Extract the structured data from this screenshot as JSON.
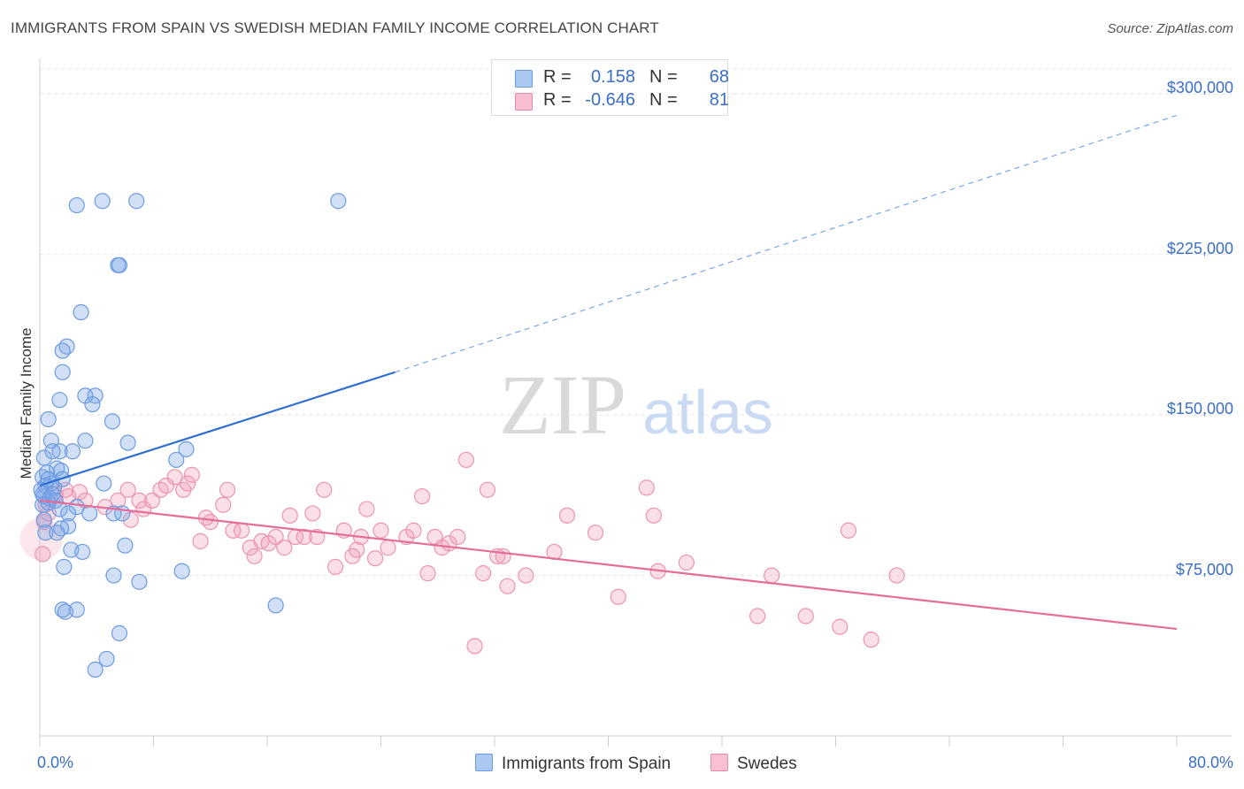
{
  "title": "IMMIGRANTS FROM SPAIN VS SWEDISH MEDIAN FAMILY INCOME CORRELATION CHART",
  "source": "Source: ZipAtlas.com",
  "watermark": {
    "zip": "ZIP",
    "atlas": "atlas"
  },
  "legend_stats": [
    {
      "r_label": "R =",
      "r_value": "0.158",
      "n_label": "N =",
      "n_value": "68",
      "color": "#aac8f0",
      "border": "#6d9be0"
    },
    {
      "r_label": "R =",
      "r_value": "-0.646",
      "n_label": "N =",
      "n_value": "81",
      "color": "#f8c0d0",
      "border": "#e88aa5"
    }
  ],
  "colors": {
    "blue_point": "#7aa6e8",
    "blue_line": "#2f6fd1",
    "pink_point": "#ef9ab5",
    "pink_line": "#e56e99",
    "tick_text": "#3a6fc4"
  },
  "chart_data": {
    "type": "scatter",
    "title": "IMMIGRANTS FROM SPAIN VS SWEDISH MEDIAN FAMILY INCOME CORRELATION CHART",
    "xlabel": "",
    "ylabel": "Median Family Income",
    "xlim": [
      0,
      80
    ],
    "ylim": [
      0,
      315000
    ],
    "x_tick_labels": [
      "0.0%",
      "80.0%"
    ],
    "y_ticks": [
      75000,
      150000,
      225000,
      300000
    ],
    "y_tick_labels": [
      "$75,000",
      "$150,000",
      "$225,000",
      "$300,000"
    ],
    "grid": true,
    "legend": "bottom",
    "series": [
      {
        "name": "Immigrants from Spain",
        "color": "#7aa6e8",
        "r": 0.158,
        "n": 68,
        "trend": {
          "x": [
            0,
            25,
            80
          ],
          "y": [
            117000,
            170000,
            290000
          ],
          "solid_until": 25
        },
        "points": [
          [
            2.6,
            248000
          ],
          [
            4.4,
            250000
          ],
          [
            6.8,
            250000
          ],
          [
            21.0,
            250000
          ],
          [
            5.5,
            220000
          ],
          [
            5.6,
            220000
          ],
          [
            2.9,
            198000
          ],
          [
            1.9,
            182000
          ],
          [
            1.6,
            180000
          ],
          [
            1.6,
            170000
          ],
          [
            1.4,
            157000
          ],
          [
            3.2,
            159000
          ],
          [
            3.9,
            159000
          ],
          [
            3.7,
            155000
          ],
          [
            5.1,
            147000
          ],
          [
            0.6,
            148000
          ],
          [
            3.2,
            138000
          ],
          [
            6.2,
            137000
          ],
          [
            0.8,
            138000
          ],
          [
            1.4,
            133000
          ],
          [
            2.3,
            133000
          ],
          [
            10.3,
            134000
          ],
          [
            9.6,
            129000
          ],
          [
            0.3,
            130000
          ],
          [
            0.9,
            133000
          ],
          [
            1.2,
            125000
          ],
          [
            1.5,
            124000
          ],
          [
            0.5,
            123000
          ],
          [
            0.2,
            121000
          ],
          [
            0.6,
            120000
          ],
          [
            1.6,
            120000
          ],
          [
            0.4,
            117000
          ],
          [
            1.0,
            116000
          ],
          [
            0.8,
            118000
          ],
          [
            4.5,
            118000
          ],
          [
            0.1,
            115000
          ],
          [
            0.3,
            112000
          ],
          [
            0.7,
            111000
          ],
          [
            1.1,
            110000
          ],
          [
            0.6,
            109000
          ],
          [
            0.2,
            108000
          ],
          [
            2.6,
            107000
          ],
          [
            1.4,
            106000
          ],
          [
            2.0,
            104000
          ],
          [
            3.5,
            104000
          ],
          [
            5.2,
            104000
          ],
          [
            5.8,
            104000
          ],
          [
            0.3,
            101000
          ],
          [
            2.0,
            98000
          ],
          [
            1.5,
            97000
          ],
          [
            0.4,
            95000
          ],
          [
            1.2,
            95000
          ],
          [
            6.0,
            89000
          ],
          [
            2.2,
            87000
          ],
          [
            3.0,
            86000
          ],
          [
            1.7,
            79000
          ],
          [
            5.2,
            75000
          ],
          [
            10.0,
            77000
          ],
          [
            7.0,
            72000
          ],
          [
            16.6,
            61000
          ],
          [
            1.6,
            59000
          ],
          [
            2.6,
            59000
          ],
          [
            1.8,
            58000
          ],
          [
            5.6,
            48000
          ],
          [
            4.7,
            36000
          ],
          [
            3.9,
            31000
          ],
          [
            0.2,
            113000
          ],
          [
            0.9,
            113000
          ]
        ]
      },
      {
        "name": "Swedes",
        "color": "#ef9ab5",
        "r": -0.646,
        "n": 81,
        "trend": {
          "x": [
            0,
            80
          ],
          "y": [
            110000,
            50000
          ]
        },
        "points": [
          [
            0.2,
            85000
          ],
          [
            0.3,
            100000
          ],
          [
            0.4,
            108000
          ],
          [
            1.8,
            115000
          ],
          [
            2.8,
            114000
          ],
          [
            2.0,
            112000
          ],
          [
            3.2,
            110000
          ],
          [
            4.6,
            107000
          ],
          [
            5.5,
            110000
          ],
          [
            6.2,
            115000
          ],
          [
            6.4,
            101000
          ],
          [
            7.0,
            110000
          ],
          [
            7.3,
            106000
          ],
          [
            7.9,
            110000
          ],
          [
            8.5,
            115000
          ],
          [
            8.9,
            117000
          ],
          [
            9.5,
            121000
          ],
          [
            10.1,
            115000
          ],
          [
            10.4,
            118000
          ],
          [
            10.7,
            122000
          ],
          [
            11.3,
            91000
          ],
          [
            11.7,
            102000
          ],
          [
            12.0,
            100000
          ],
          [
            12.9,
            108000
          ],
          [
            13.2,
            115000
          ],
          [
            13.6,
            96000
          ],
          [
            14.2,
            96000
          ],
          [
            14.8,
            88000
          ],
          [
            15.1,
            84000
          ],
          [
            15.6,
            91000
          ],
          [
            16.1,
            90000
          ],
          [
            16.6,
            93000
          ],
          [
            17.2,
            88000
          ],
          [
            17.6,
            103000
          ],
          [
            18.0,
            93000
          ],
          [
            18.6,
            93000
          ],
          [
            19.2,
            104000
          ],
          [
            19.5,
            93000
          ],
          [
            20.0,
            115000
          ],
          [
            20.8,
            79000
          ],
          [
            21.4,
            96000
          ],
          [
            22.0,
            84000
          ],
          [
            22.3,
            87000
          ],
          [
            22.6,
            93000
          ],
          [
            23.0,
            106000
          ],
          [
            23.6,
            83000
          ],
          [
            24.0,
            96000
          ],
          [
            24.5,
            88000
          ],
          [
            25.8,
            93000
          ],
          [
            26.3,
            96000
          ],
          [
            26.9,
            112000
          ],
          [
            27.3,
            76000
          ],
          [
            27.8,
            93000
          ],
          [
            28.3,
            88000
          ],
          [
            28.8,
            90000
          ],
          [
            29.4,
            93000
          ],
          [
            30.0,
            129000
          ],
          [
            30.6,
            42000
          ],
          [
            31.2,
            76000
          ],
          [
            31.5,
            115000
          ],
          [
            32.2,
            84000
          ],
          [
            32.6,
            84000
          ],
          [
            32.9,
            70000
          ],
          [
            34.2,
            75000
          ],
          [
            36.2,
            86000
          ],
          [
            37.1,
            103000
          ],
          [
            39.1,
            95000
          ],
          [
            40.7,
            65000
          ],
          [
            42.7,
            116000
          ],
          [
            43.2,
            103000
          ],
          [
            43.5,
            77000
          ],
          [
            45.5,
            81000
          ],
          [
            50.5,
            56000
          ],
          [
            51.5,
            75000
          ],
          [
            53.9,
            56000
          ],
          [
            56.3,
            51000
          ],
          [
            56.9,
            96000
          ],
          [
            58.5,
            45000
          ],
          [
            60.3,
            75000
          ],
          [
            1.1,
            113000
          ],
          [
            0.6,
            104000
          ]
        ]
      }
    ]
  }
}
